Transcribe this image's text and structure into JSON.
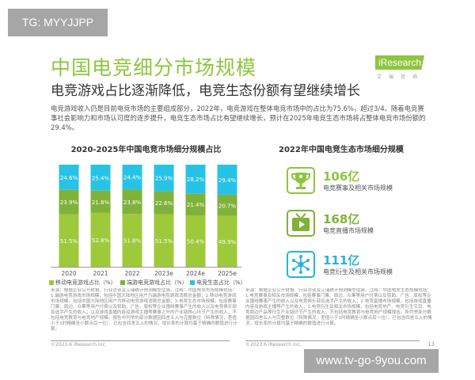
{
  "watermark_tag": "TG: MYYJJPP",
  "watermark_url": "www.tv-go-9you.com",
  "header": {
    "title": "中国电竞细分市场规模",
    "logo": "iResearch",
    "logo_sub": "艾瑞咨询",
    "subtitle": "电竞游戏占比逐渐降低，电竞生态份额有望继续增长"
  },
  "paragraph": "电竞游戏收入仍是目前电竞市场的主要组成部分，2022年，电竞游戏在整体电竞市场中的占比为75.6%，超过3/4。随着电竞赛事社会影响力和市场认可度的逐步提升，电竞生态市场占比有望继续增长，预计在2025年电竞生态市场将占整体电竞市场份额的29.4%。",
  "chart_data": {
    "type": "bar",
    "stacked": true,
    "normalized": true,
    "title": "2020-2025年中国电竞市场细分规模占比",
    "categories": [
      "2020",
      "2021",
      "2022",
      "2023e",
      "2024e",
      "2025e"
    ],
    "series": [
      {
        "name": "移动电竞游戏占比（%）",
        "color": "#9dc93b",
        "values": [
          51.5,
          52.8,
          51.8,
          51.5,
          50.4,
          49.9
        ]
      },
      {
        "name": "端游电竞游戏占比（%）",
        "color": "#7fb23a",
        "values": [
          23.9,
          21.8,
          23.8,
          22.6,
          21.4,
          20.7
        ]
      },
      {
        "name": "电竞生态占比（%）",
        "color": "#27c3e6",
        "values": [
          24.6,
          25.4,
          24.4,
          25.9,
          28.2,
          29.4
        ]
      }
    ],
    "ylim": [
      0,
      100
    ],
    "grid": false,
    "legend": "bottom"
  },
  "right": {
    "title": "2022年中国电竞生态市场细分规模",
    "items": [
      {
        "value": "106亿",
        "label": "电竞赛事及相关市场规模",
        "icon": "trophy-icon",
        "color": "#8dc63f"
      },
      {
        "value": "168亿",
        "label": "电竞直播市场规模",
        "icon": "tv-play-icon",
        "color": "#7fb23a"
      },
      {
        "value": "111亿",
        "label": "电竞衍生及相关市场规模",
        "icon": "network-icon",
        "color": "#27b5d6"
      }
    ]
  },
  "notes": {
    "left": "来源：根据企业公开财报、行业访谈及艾瑞统计预测模型估算。注释：中国电竞市场规模包括：1.端游电竞游戏市场规模，包括中国大陆地区用户为端游电竞游戏消费总金额；2.移动电竞游戏市场规模，包括中国大陆地区用户为移动电竞游戏消费总金额；3.电竞生态市场规模，包括赛事门票、周边、众筹等用户付费以及赞助、广告、版权等企业围绕赛事产生的收入以及电竞俱乐部及选手产生的收入；以及游戏直播内容及游戏主播等赛事之外的产业链核心环节产生的收入，不包括电竞教育与电竞地产规模。报告中列举的部分数据因四舍五入与完整数位（特殊情况，差值小于1时精确至小数点后一位），已包含四舍五入的情况，增长率的计算均基于精确的数值进行计算。",
    "right": "来源：根据企业公开财报、行业访谈及艾瑞统计预测模型估算。注释：中国电竞生态规模包括：1.电竞赛事及相关市场规模，包括赛事门票、周边、众筹等用户付费以及赞助、广告、版权等企业围绕赛事产生的收入以及电竞俱乐部及选手产生的收入；2.电竞直播市场规模，包括游戏直播内容及游戏主播等产生的收入；3.电竞衍生及相关市场规模，包括电竞地产、电竞衍生节目、电竞周边产品等衍生产业链环节产生的收入，不包括电竞教育与电竞地产规模报告。所列举部分数据因四舍五入与完整数位（特殊情况，差值小于1时精确至小数点后一位），已包含四舍五入的情况，增长率的计算均基于精确的数值进行计算。",
    "copyright": "©2023.6 iResearch Inc.",
    "page": "13"
  }
}
